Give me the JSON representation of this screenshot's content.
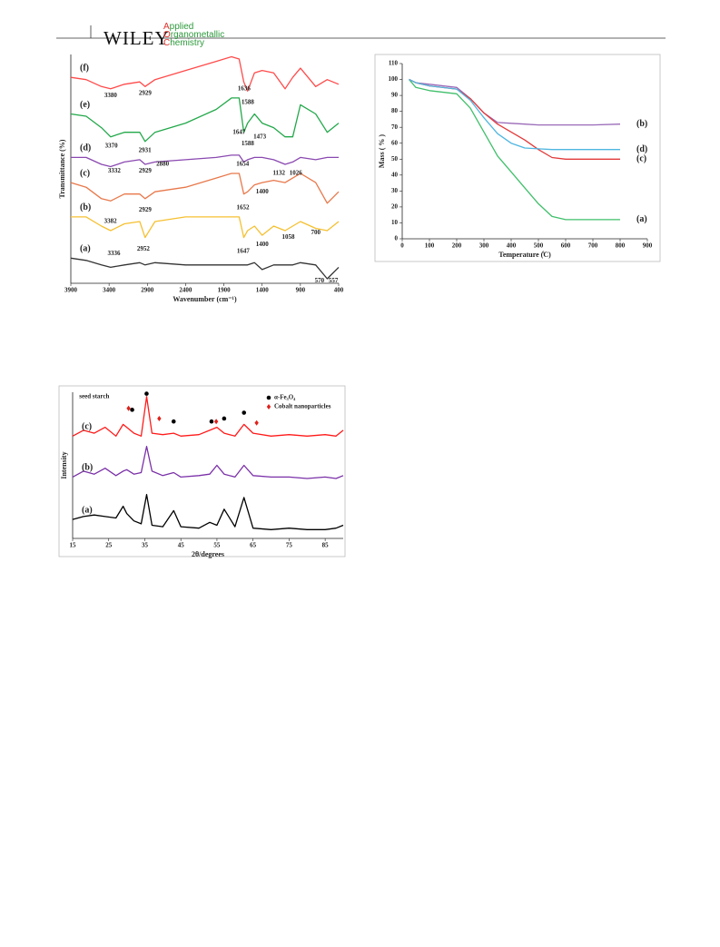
{
  "header": {
    "brand": "WILEY",
    "journal": [
      "Applied",
      "Organometallic",
      "Chemistry"
    ]
  },
  "chart_data": [
    {
      "type": "line",
      "xlabel": "Wavenumber (cm⁻¹)",
      "ylabel": "Transmittance (%)",
      "xlim": [
        3900,
        400
      ],
      "xticks": [
        3900,
        3400,
        2900,
        2400,
        1900,
        1400,
        900,
        400
      ],
      "ylim": [
        0,
        100
      ],
      "x": [
        3900,
        3700,
        3500,
        3380,
        3200,
        3000,
        2929,
        2800,
        2400,
        2000,
        1800,
        1700,
        1640,
        1590,
        1500,
        1400,
        1250,
        1100,
        1000,
        900,
        700,
        550,
        400
      ],
      "series": [
        {
          "name": "(a)",
          "color": "#333333",
          "values": [
            11,
            10,
            8,
            7,
            8,
            9,
            8,
            9,
            8,
            8,
            8,
            8,
            8,
            8,
            9,
            6,
            8,
            8,
            8,
            9,
            8,
            2,
            7
          ]
        },
        {
          "name": "(b)",
          "color": "#f5c030",
          "values": [
            29,
            29,
            25,
            23,
            26,
            27,
            20,
            27,
            29,
            29,
            29,
            29,
            20,
            23,
            25,
            21,
            25,
            23,
            25,
            27,
            24,
            23,
            27
          ]
        },
        {
          "name": "(c)",
          "color": "#e8784a",
          "values": [
            44,
            42,
            37,
            36,
            39,
            39,
            37,
            40,
            42,
            46,
            48,
            48,
            39,
            40,
            43,
            44,
            45,
            44,
            46,
            48,
            44,
            35,
            40
          ]
        },
        {
          "name": "(d)",
          "color": "#8a48b0",
          "values": [
            55,
            55,
            52,
            51,
            53,
            54,
            52,
            53,
            54,
            55,
            56,
            56,
            53,
            54,
            55,
            55,
            54,
            52,
            53,
            55,
            54,
            55,
            55
          ]
        },
        {
          "name": "(e)",
          "color": "#22a84a",
          "values": [
            74,
            73,
            68,
            64,
            66,
            66,
            62,
            66,
            70,
            76,
            81,
            81,
            66,
            70,
            74,
            70,
            68,
            64,
            64,
            78,
            74,
            66,
            70
          ]
        },
        {
          "name": "(f)",
          "color": "#ff4a4a",
          "values": [
            90,
            89,
            86,
            85,
            87,
            88,
            86,
            89,
            93,
            97,
            99,
            98,
            88,
            84,
            92,
            93,
            92,
            85,
            90,
            94,
            86,
            89,
            87
          ]
        }
      ],
      "annotations": [
        {
          "text": "3380",
          "x": 3380,
          "y": 82
        },
        {
          "text": "2929",
          "x": 2929,
          "y": 83
        },
        {
          "text": "1636",
          "x": 1636,
          "y": 85
        },
        {
          "text": "1588",
          "x": 1588,
          "y": 79
        },
        {
          "text": "3370",
          "x": 3370,
          "y": 60
        },
        {
          "text": "2931",
          "x": 2931,
          "y": 58
        },
        {
          "text": "1647",
          "x": 1700,
          "y": 66
        },
        {
          "text": "1588",
          "x": 1588,
          "y": 61
        },
        {
          "text": "1473",
          "x": 1430,
          "y": 64
        },
        {
          "text": "3332",
          "x": 3332,
          "y": 49
        },
        {
          "text": "2929",
          "x": 2929,
          "y": 49
        },
        {
          "text": "2880",
          "x": 2700,
          "y": 52
        },
        {
          "text": "1654",
          "x": 1654,
          "y": 52
        },
        {
          "text": "1132",
          "x": 1180,
          "y": 48
        },
        {
          "text": "1026",
          "x": 960,
          "y": 48
        },
        {
          "text": "3382",
          "x": 3382,
          "y": 27
        },
        {
          "text": "2929",
          "x": 2929,
          "y": 32
        },
        {
          "text": "1652",
          "x": 1652,
          "y": 33
        },
        {
          "text": "1400",
          "x": 1400,
          "y": 40
        },
        {
          "text": "3336",
          "x": 3336,
          "y": 13
        },
        {
          "text": "2952",
          "x": 2952,
          "y": 15
        },
        {
          "text": "1647",
          "x": 1647,
          "y": 14
        },
        {
          "text": "1400",
          "x": 1400,
          "y": 17
        },
        {
          "text": "1058",
          "x": 1058,
          "y": 20
        },
        {
          "text": "700",
          "x": 700,
          "y": 22
        },
        {
          "text": "570",
          "x": 650,
          "y": 1
        },
        {
          "text": "557",
          "x": 470,
          "y": 1
        }
      ]
    },
    {
      "type": "line",
      "xlabel": "Temperature (̊C)",
      "ylabel": "Mass ( % )",
      "xlim": [
        0,
        900
      ],
      "xticks": [
        0,
        100,
        200,
        300,
        400,
        500,
        600,
        700,
        800,
        900
      ],
      "ylim": [
        0,
        110
      ],
      "yticks": [
        0,
        10,
        20,
        30,
        40,
        50,
        60,
        70,
        80,
        90,
        100,
        110
      ],
      "x": [
        25,
        50,
        100,
        200,
        250,
        300,
        350,
        400,
        450,
        500,
        550,
        600,
        700,
        800
      ],
      "series": [
        {
          "name": "(a)",
          "color": "#3fbf6a",
          "values": [
            100,
            95,
            93,
            91,
            82,
            67,
            52,
            42,
            32,
            22,
            14,
            12,
            12,
            12
          ]
        },
        {
          "name": "(b)",
          "color": "#9a6ab8",
          "values": [
            100,
            98,
            97,
            95,
            88,
            79,
            73,
            72.5,
            72,
            71.5,
            71.5,
            71.5,
            71.5,
            72
          ]
        },
        {
          "name": "(c)",
          "color": "#e23a3a",
          "values": [
            100,
            98,
            96,
            94,
            88,
            79,
            72,
            67,
            62,
            56,
            51,
            50,
            50,
            50
          ]
        },
        {
          "name": "(d)",
          "color": "#4fb6e0",
          "values": [
            100,
            98,
            96,
            94,
            87,
            76,
            66,
            60,
            57,
            56.5,
            56,
            56,
            56,
            56
          ]
        }
      ]
    },
    {
      "type": "line",
      "xlabel": "2θ/degrees",
      "ylabel": "Intensity",
      "xlim": [
        15,
        90
      ],
      "xticks": [
        15,
        25,
        35,
        45,
        55,
        65,
        75,
        85
      ],
      "ylim": [
        0,
        100
      ],
      "legend": "upper right",
      "x": [
        15,
        18,
        21,
        24,
        27,
        29,
        30,
        32,
        34,
        35.5,
        37,
        40,
        43,
        45,
        50,
        53,
        55,
        57,
        60,
        62.5,
        65,
        70,
        75,
        80,
        85,
        88,
        90
      ],
      "series": [
        {
          "name": "(a)",
          "color": "#000000",
          "values": [
            13,
            15,
            16,
            15,
            14,
            22,
            17,
            12,
            10,
            30,
            9,
            8,
            19,
            8,
            7,
            11,
            9,
            20,
            8,
            28,
            7,
            6,
            7,
            6,
            6,
            7,
            9
          ]
        },
        {
          "name": "(b)",
          "color": "#7a30a8",
          "values": [
            42,
            46,
            44,
            48,
            43,
            46,
            47,
            44,
            45,
            63,
            46,
            43,
            45,
            42,
            43,
            44,
            50,
            44,
            42,
            50,
            43,
            42,
            42,
            41,
            42,
            41,
            43
          ]
        },
        {
          "name": "(c)",
          "color": "#ff1a1a",
          "values": [
            70,
            74,
            72,
            76,
            70,
            78,
            76,
            72,
            70,
            97,
            72,
            71,
            72,
            70,
            71,
            74,
            76,
            72,
            70,
            78,
            72,
            70,
            71,
            70,
            71,
            70,
            74
          ]
        }
      ],
      "legend_items": [
        {
          "label": "α-Fe₃O₄",
          "shape": "dot",
          "color": "#000000"
        },
        {
          "label": "Cobalt nanoparticles",
          "shape": "diamond",
          "color": "#e0201a"
        }
      ],
      "markers": [
        {
          "x": 30.5,
          "y": 89,
          "shape": "diamond"
        },
        {
          "x": 31.5,
          "y": 88,
          "shape": "dot"
        },
        {
          "x": 35.5,
          "y": 99,
          "shape": "dot"
        },
        {
          "x": 39,
          "y": 82,
          "shape": "diamond"
        },
        {
          "x": 43,
          "y": 80,
          "shape": "dot"
        },
        {
          "x": 53.5,
          "y": 80,
          "shape": "dot"
        },
        {
          "x": 54.8,
          "y": 80,
          "shape": "diamond"
        },
        {
          "x": 57,
          "y": 82,
          "shape": "dot"
        },
        {
          "x": 62.5,
          "y": 86,
          "shape": "dot"
        },
        {
          "x": 66,
          "y": 79,
          "shape": "diamond"
        }
      ],
      "annotations": [
        {
          "text": "seed starch",
          "x": 21,
          "y": 97
        }
      ]
    }
  ]
}
